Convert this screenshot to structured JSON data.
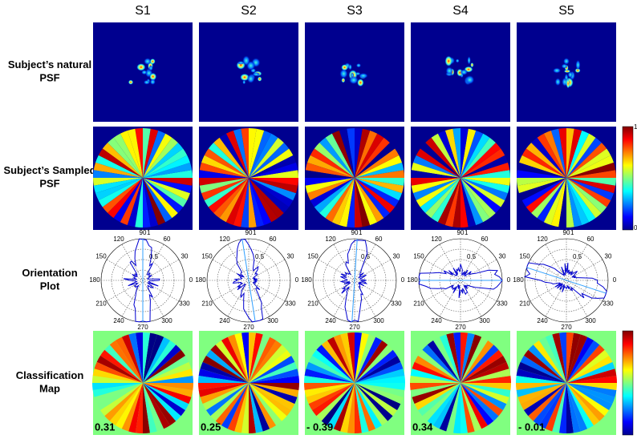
{
  "columns": [
    "S1",
    "S2",
    "S3",
    "S4",
    "S5"
  ],
  "rows": [
    "Subject’s natural PSF",
    "Subject’s Sampled PSF",
    "Orientation Plot",
    "Classification Map"
  ],
  "polar": {
    "angle_labels": [
      "0",
      "30",
      "60",
      "90",
      "120",
      "150",
      "180",
      "210",
      "240",
      "270",
      "300",
      "330"
    ],
    "radial_labels": [
      "0.5",
      "1"
    ]
  },
  "colorbar": {
    "top": "1",
    "bottom": "0"
  },
  "scores": [
    "0.31",
    "0.25",
    "- 0.39",
    "0.34",
    "- 0.01"
  ]
}
